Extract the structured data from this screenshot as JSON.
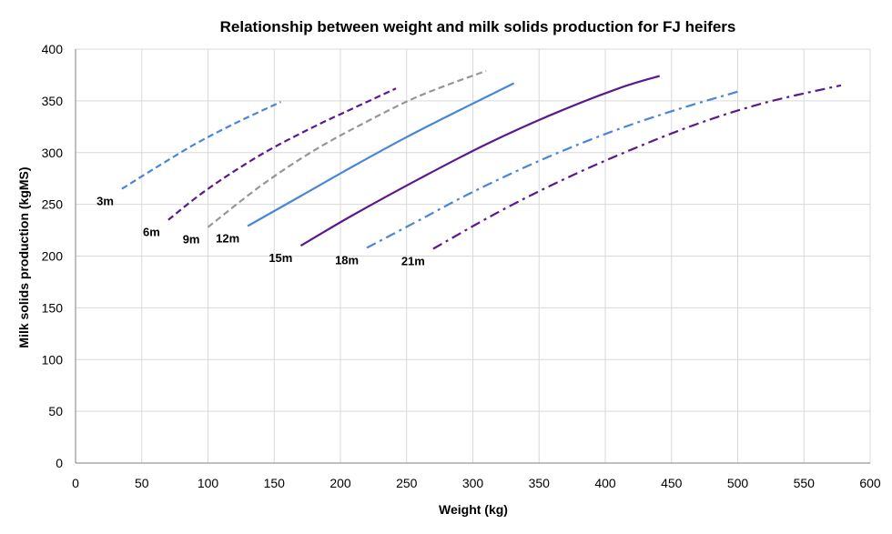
{
  "chart_data": {
    "type": "line",
    "title": "Relationship between weight and milk solids production for FJ heifers",
    "xlabel": "Weight (kg)",
    "ylabel": "Milk solids production (kgMS)",
    "xlim": [
      0,
      600
    ],
    "ylim": [
      0,
      400
    ],
    "xticks": [
      0,
      50,
      100,
      150,
      200,
      250,
      300,
      350,
      400,
      450,
      500,
      550,
      600
    ],
    "yticks": [
      0,
      50,
      100,
      150,
      200,
      250,
      300,
      350,
      400
    ],
    "grid": true,
    "legend": "none",
    "series": [
      {
        "name": "3m",
        "color": "#4a86d8",
        "dash": "dashed",
        "points": [
          [
            35,
            265
          ],
          [
            60,
            285
          ],
          [
            90,
            308
          ],
          [
            120,
            328
          ],
          [
            155,
            349
          ]
        ]
      },
      {
        "name": "6m",
        "color": "#5b1a8b",
        "dash": "dashed",
        "points": [
          [
            70,
            235
          ],
          [
            100,
            265
          ],
          [
            140,
            298
          ],
          [
            180,
            325
          ],
          [
            210,
            343
          ],
          [
            242,
            362
          ]
        ]
      },
      {
        "name": "9m",
        "color": "#969696",
        "dash": "dashed",
        "points": [
          [
            100,
            228
          ],
          [
            140,
            268
          ],
          [
            180,
            302
          ],
          [
            220,
            330
          ],
          [
            260,
            355
          ],
          [
            310,
            379
          ]
        ]
      },
      {
        "name": "12m",
        "color": "#4a86d8",
        "dash": "solid",
        "points": [
          [
            130,
            229
          ],
          [
            170,
            258
          ],
          [
            210,
            287
          ],
          [
            250,
            315
          ],
          [
            290,
            341
          ],
          [
            331,
            367
          ]
        ]
      },
      {
        "name": "15m",
        "color": "#5b1a8b",
        "dash": "solid",
        "points": [
          [
            170,
            210
          ],
          [
            210,
            240
          ],
          [
            260,
            275
          ],
          [
            310,
            308
          ],
          [
            360,
            337
          ],
          [
            410,
            362
          ],
          [
            441,
            374
          ]
        ]
      },
      {
        "name": "18m",
        "color": "#4a86d8",
        "dash": "dashdot",
        "points": [
          [
            220,
            208
          ],
          [
            260,
            235
          ],
          [
            300,
            262
          ],
          [
            350,
            292
          ],
          [
            400,
            318
          ],
          [
            450,
            340
          ],
          [
            503,
            360
          ]
        ]
      },
      {
        "name": "21m",
        "color": "#5b1a8b",
        "dash": "dashdot",
        "points": [
          [
            270,
            207
          ],
          [
            320,
            243
          ],
          [
            370,
            275
          ],
          [
            420,
            303
          ],
          [
            470,
            328
          ],
          [
            520,
            348
          ],
          [
            578,
            365
          ]
        ]
      }
    ]
  }
}
